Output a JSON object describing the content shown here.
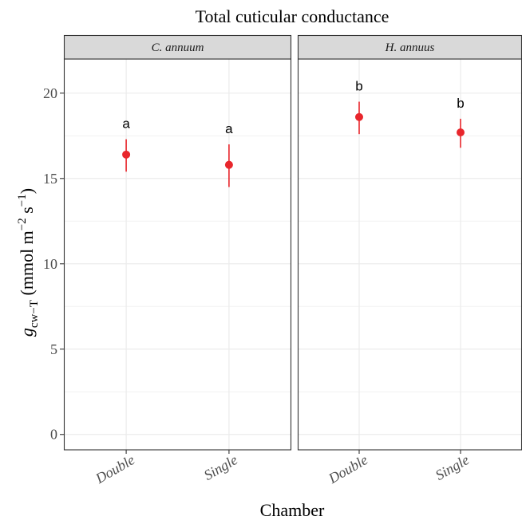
{
  "chart_data": {
    "type": "scatter",
    "title": "Total cuticular conductance",
    "xlabel": "Chamber",
    "ylabel": {
      "main": "g",
      "sub": "cw−T",
      "unit_open": " (mmol  m",
      "exp1": "−2",
      "unit_mid": " s",
      "exp2": "−1",
      "unit_close": ")"
    },
    "ylim": [
      -0.9,
      22.0
    ],
    "yticks": [
      0,
      5,
      10,
      15,
      20
    ],
    "grid": true,
    "categories": [
      "Double",
      "Single"
    ],
    "color": "#e8262c",
    "panels": [
      {
        "name": "C. annuum",
        "points": [
          {
            "x": "Double",
            "y": 16.4,
            "ymin": 15.4,
            "ymax": 17.3,
            "label": "a"
          },
          {
            "x": "Single",
            "y": 15.8,
            "ymin": 14.5,
            "ymax": 17.0,
            "label": "a"
          }
        ]
      },
      {
        "name": "H. annuus",
        "points": [
          {
            "x": "Double",
            "y": 18.6,
            "ymin": 17.6,
            "ymax": 19.5,
            "label": "b"
          },
          {
            "x": "Single",
            "y": 17.7,
            "ymin": 16.8,
            "ymax": 18.5,
            "label": "b"
          }
        ]
      }
    ]
  }
}
